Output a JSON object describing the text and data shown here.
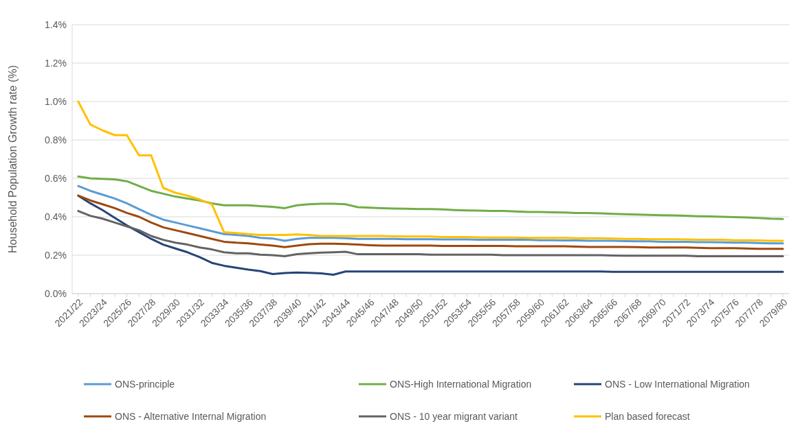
{
  "chart_data": {
    "type": "line",
    "ylabel": "Household Population Growth rate (%)",
    "categories": [
      "2021/22",
      null,
      "2023/24",
      null,
      "2025/26",
      null,
      "2027/28",
      null,
      "2029/30",
      null,
      "2031/32",
      null,
      "2033/34",
      null,
      "2035/36",
      null,
      "2037/38",
      null,
      "2039/40",
      null,
      "2041/42",
      null,
      "2043/44",
      null,
      "2045/46",
      null,
      "2047/48",
      null,
      "2049/50",
      null,
      "2051/52",
      null,
      "2053/54",
      null,
      "2055/56",
      null,
      "2057/58",
      null,
      "2059/60",
      null,
      "2061/62",
      null,
      "2063/64",
      null,
      "2065/66",
      null,
      "2067/68",
      null,
      "2069/70",
      null,
      "2071/72",
      null,
      "2073/74",
      null,
      "2075/76",
      null,
      "2077/78",
      null,
      "2079/80"
    ],
    "ylim": [
      0,
      1.4
    ],
    "yticks": [
      {
        "value": 0,
        "label": "0.0%"
      },
      {
        "value": 0.2,
        "label": "0.2%"
      },
      {
        "value": 0.4,
        "label": "0.4%"
      },
      {
        "value": 0.6,
        "label": "0.6%"
      },
      {
        "value": 0.8,
        "label": "0.8%"
      },
      {
        "value": 1.0,
        "label": "1.0%"
      },
      {
        "value": 1.2,
        "label": "1.2%"
      },
      {
        "value": 1.4,
        "label": "1.4%"
      }
    ],
    "grid": "y",
    "legend": "bottom",
    "marker": "none",
    "line_style": "solid",
    "series": [
      {
        "name": "ONS-principle",
        "color": "#5b9bd5",
        "values": [
          0.56,
          0.535,
          0.515,
          0.495,
          0.47,
          0.44,
          0.41,
          0.385,
          0.37,
          0.355,
          0.34,
          0.325,
          0.31,
          0.305,
          0.3,
          0.29,
          0.287,
          0.275,
          0.285,
          0.29,
          0.29,
          0.29,
          0.288,
          0.285,
          0.285,
          0.285,
          0.285,
          0.283,
          0.283,
          0.283,
          0.282,
          0.282,
          0.282,
          0.28,
          0.28,
          0.28,
          0.28,
          0.28,
          0.278,
          0.278,
          0.277,
          0.277,
          0.275,
          0.275,
          0.275,
          0.273,
          0.272,
          0.272,
          0.27,
          0.27,
          0.27,
          0.268,
          0.268,
          0.267,
          0.265,
          0.265,
          0.263,
          0.262,
          0.262
        ]
      },
      {
        "name": "ONS-High International Migration",
        "color": "#70ad47",
        "values": [
          0.61,
          0.6,
          0.597,
          0.595,
          0.585,
          0.56,
          0.535,
          0.52,
          0.505,
          0.495,
          0.485,
          0.47,
          0.46,
          0.46,
          0.46,
          0.455,
          0.452,
          0.445,
          0.46,
          0.465,
          0.468,
          0.468,
          0.465,
          0.45,
          0.447,
          0.445,
          0.443,
          0.442,
          0.44,
          0.44,
          0.438,
          0.435,
          0.433,
          0.432,
          0.43,
          0.43,
          0.428,
          0.425,
          0.425,
          0.423,
          0.422,
          0.42,
          0.42,
          0.418,
          0.415,
          0.413,
          0.412,
          0.41,
          0.408,
          0.407,
          0.405,
          0.403,
          0.402,
          0.4,
          0.398,
          0.396,
          0.394,
          0.39,
          0.388
        ]
      },
      {
        "name": "ONS - Low International Migration",
        "color": "#264478",
        "values": [
          0.51,
          0.47,
          0.435,
          0.395,
          0.355,
          0.32,
          0.285,
          0.255,
          0.235,
          0.215,
          0.19,
          0.16,
          0.145,
          0.135,
          0.125,
          0.117,
          0.102,
          0.107,
          0.11,
          0.108,
          0.105,
          0.098,
          0.115,
          0.115,
          0.115,
          0.115,
          0.115,
          0.115,
          0.115,
          0.115,
          0.115,
          0.115,
          0.115,
          0.115,
          0.115,
          0.115,
          0.115,
          0.115,
          0.115,
          0.115,
          0.115,
          0.115,
          0.115,
          0.115,
          0.113,
          0.113,
          0.113,
          0.113,
          0.113,
          0.113,
          0.113,
          0.113,
          0.113,
          0.113,
          0.113,
          0.113,
          0.113,
          0.113,
          0.113
        ]
      },
      {
        "name": "ONS - Alternative Internal Migration",
        "color": "#9e480e",
        "values": [
          0.51,
          0.485,
          0.465,
          0.445,
          0.42,
          0.4,
          0.37,
          0.345,
          0.33,
          0.315,
          0.3,
          0.285,
          0.27,
          0.265,
          0.262,
          0.255,
          0.25,
          0.242,
          0.25,
          0.257,
          0.26,
          0.26,
          0.258,
          0.255,
          0.252,
          0.25,
          0.25,
          0.25,
          0.25,
          0.25,
          0.248,
          0.248,
          0.248,
          0.248,
          0.248,
          0.248,
          0.246,
          0.246,
          0.246,
          0.246,
          0.246,
          0.245,
          0.243,
          0.243,
          0.243,
          0.243,
          0.242,
          0.24,
          0.24,
          0.24,
          0.24,
          0.238,
          0.237,
          0.237,
          0.237,
          0.235,
          0.233,
          0.233,
          0.233
        ]
      },
      {
        "name": "ONS - 10 year migrant variant",
        "color": "#636363",
        "values": [
          0.43,
          0.405,
          0.39,
          0.37,
          0.35,
          0.33,
          0.3,
          0.28,
          0.265,
          0.255,
          0.24,
          0.23,
          0.215,
          0.21,
          0.21,
          0.203,
          0.2,
          0.195,
          0.205,
          0.21,
          0.213,
          0.215,
          0.218,
          0.205,
          0.205,
          0.205,
          0.205,
          0.205,
          0.205,
          0.203,
          0.203,
          0.203,
          0.203,
          0.203,
          0.203,
          0.2,
          0.2,
          0.2,
          0.2,
          0.2,
          0.2,
          0.2,
          0.2,
          0.2,
          0.198,
          0.197,
          0.197,
          0.197,
          0.197,
          0.197,
          0.197,
          0.195,
          0.195,
          0.195,
          0.195,
          0.195,
          0.195,
          0.195,
          0.195
        ]
      },
      {
        "name": "Plan based forecast",
        "color": "#ffc000",
        "values": [
          1.0,
          0.88,
          0.85,
          0.825,
          0.825,
          0.72,
          0.72,
          0.55,
          0.525,
          0.51,
          0.49,
          0.465,
          0.32,
          0.315,
          0.31,
          0.305,
          0.305,
          0.305,
          0.308,
          0.305,
          0.3,
          0.3,
          0.3,
          0.3,
          0.3,
          0.3,
          0.298,
          0.297,
          0.297,
          0.297,
          0.295,
          0.295,
          0.295,
          0.293,
          0.292,
          0.292,
          0.292,
          0.29,
          0.29,
          0.29,
          0.29,
          0.288,
          0.288,
          0.288,
          0.287,
          0.285,
          0.285,
          0.283,
          0.283,
          0.283,
          0.282,
          0.28,
          0.28,
          0.28,
          0.278,
          0.278,
          0.277,
          0.275,
          0.275
        ]
      }
    ]
  }
}
